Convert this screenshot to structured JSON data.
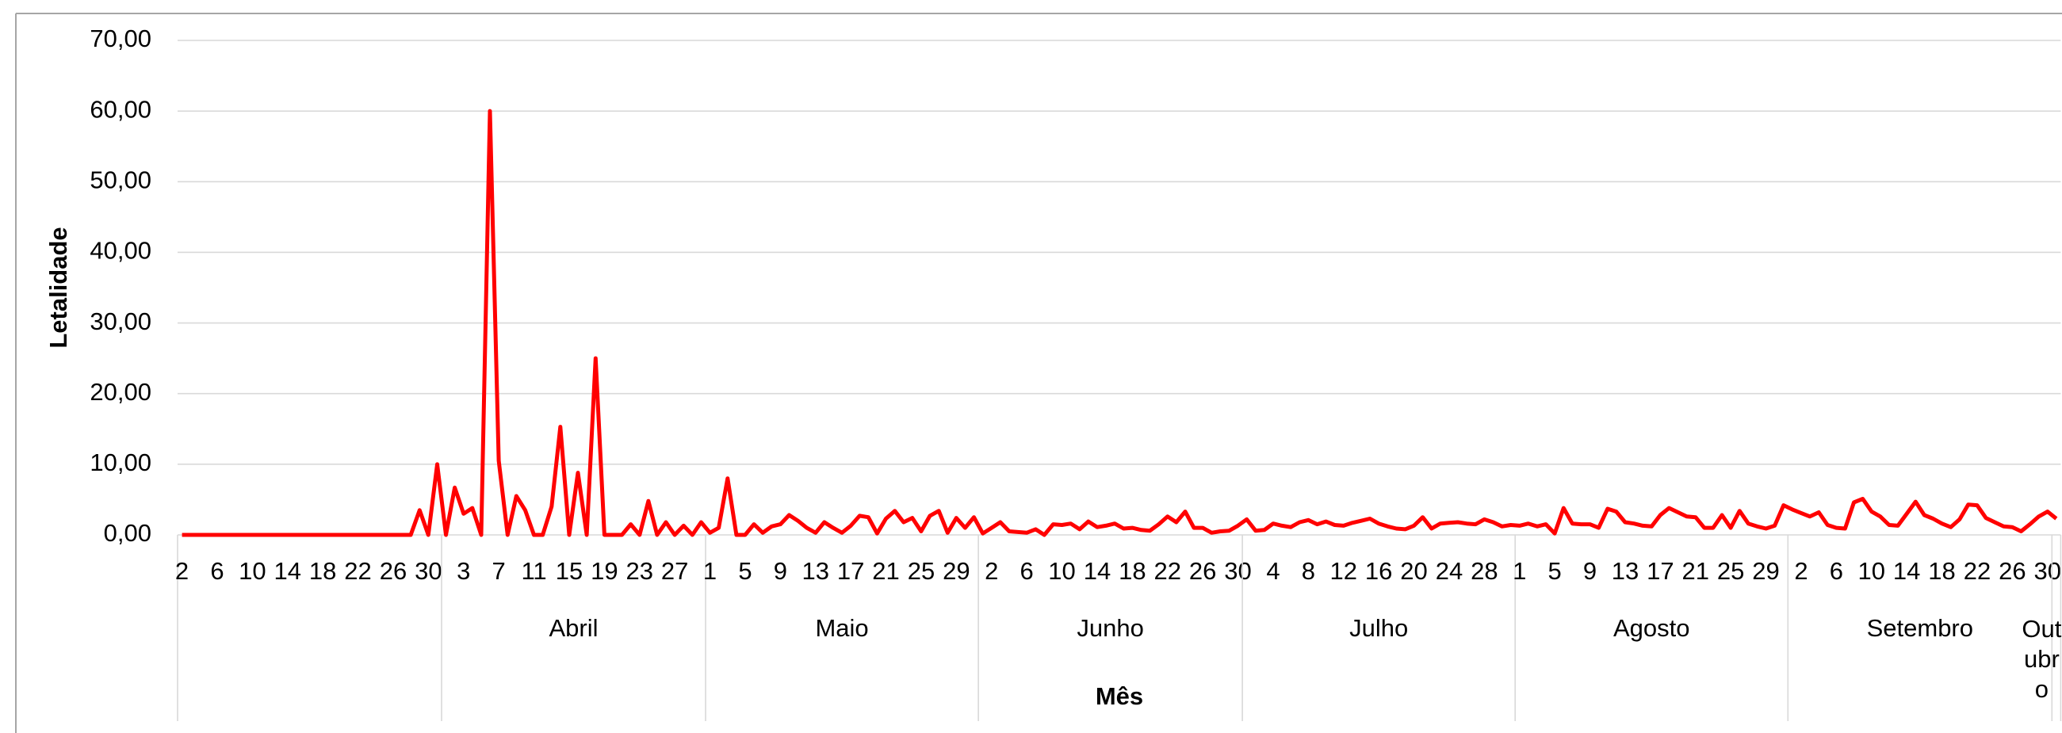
{
  "chart_data": {
    "type": "line",
    "y_label": "Letalidade",
    "x_label": "Mês",
    "color": "#ff0000",
    "grid": true,
    "ylim": [
      0,
      70
    ],
    "yticks": [
      {
        "value": 0,
        "label": "0,00"
      },
      {
        "value": 10,
        "label": "10,00"
      },
      {
        "value": 20,
        "label": "20,00"
      },
      {
        "value": 30,
        "label": "30,00"
      },
      {
        "value": 40,
        "label": "40,00"
      },
      {
        "value": 50,
        "label": "50,00"
      },
      {
        "value": 60,
        "label": "60,00"
      },
      {
        "value": 70,
        "label": "70,00"
      }
    ],
    "months": [
      {
        "label": null,
        "days": [
          "2",
          null,
          null,
          null,
          "6",
          null,
          null,
          null,
          "10",
          null,
          null,
          null,
          "14",
          null,
          null,
          null,
          "18",
          null,
          null,
          null,
          "22",
          null,
          null,
          null,
          "26",
          null,
          null,
          null,
          "30",
          null
        ],
        "values": [
          0,
          0,
          0,
          0,
          0,
          0,
          0,
          0,
          0,
          0,
          0,
          0,
          0,
          0,
          0,
          0,
          0,
          0,
          0,
          0,
          0,
          0,
          0,
          0,
          0,
          0,
          0,
          3.5,
          0,
          10
        ]
      },
      {
        "label": "Abril",
        "days": [
          null,
          null,
          "3",
          null,
          null,
          null,
          "7",
          null,
          null,
          null,
          "11",
          null,
          null,
          null,
          "15",
          null,
          null,
          null,
          "19",
          null,
          null,
          null,
          "23",
          null,
          null,
          null,
          "27",
          null,
          null,
          null
        ],
        "values": [
          0,
          6.7,
          3,
          3.8,
          0,
          60,
          10.5,
          0,
          5.5,
          3.5,
          0,
          0,
          4,
          15.3,
          0,
          8.8,
          0,
          25,
          0,
          0,
          0,
          1.5,
          0,
          4.8,
          0,
          1.8,
          0,
          1.3,
          0,
          1.8
        ]
      },
      {
        "label": "Maio",
        "days": [
          "1",
          null,
          null,
          null,
          "5",
          null,
          null,
          null,
          "9",
          null,
          null,
          null,
          "13",
          null,
          null,
          null,
          "17",
          null,
          null,
          null,
          "21",
          null,
          null,
          null,
          "25",
          null,
          null,
          null,
          "29",
          null,
          null
        ],
        "values": [
          0.3,
          1,
          8,
          0,
          0,
          1.5,
          0.3,
          1.2,
          1.5,
          2.8,
          2,
          1,
          0.3,
          1.8,
          1,
          0.3,
          1.3,
          2.7,
          2.5,
          0.2,
          2.3,
          3.4,
          1.8,
          2.4,
          0.5,
          2.7,
          3.4,
          0.3,
          2.4,
          1,
          2.5
        ]
      },
      {
        "label": "Junho",
        "days": [
          null,
          "2",
          null,
          null,
          null,
          "6",
          null,
          null,
          null,
          "10",
          null,
          null,
          null,
          "14",
          null,
          null,
          null,
          "18",
          null,
          null,
          null,
          "22",
          null,
          null,
          null,
          "26",
          null,
          null,
          null,
          "30"
        ],
        "values": [
          0.2,
          1,
          1.8,
          0.5,
          0.4,
          0.3,
          0.8,
          0,
          1.5,
          1.4,
          1.6,
          0.8,
          1.9,
          1.1,
          1.3,
          1.6,
          0.9,
          1,
          0.7,
          0.6,
          1.5,
          2.6,
          1.8,
          3.3,
          1,
          1,
          0.3,
          0.5,
          0.6,
          1.3
        ]
      },
      {
        "label": "Julho",
        "days": [
          null,
          null,
          null,
          "4",
          null,
          null,
          null,
          "8",
          null,
          null,
          null,
          "12",
          null,
          null,
          null,
          "16",
          null,
          null,
          null,
          "20",
          null,
          null,
          null,
          "24",
          null,
          null,
          null,
          "28",
          null,
          null,
          null
        ],
        "values": [
          2.2,
          0.6,
          0.7,
          1.6,
          1.3,
          1.1,
          1.8,
          2.1,
          1.5,
          1.9,
          1.4,
          1.3,
          1.7,
          2,
          2.3,
          1.6,
          1.2,
          0.9,
          0.8,
          1.3,
          2.5,
          0.9,
          1.6,
          1.7,
          1.8,
          1.6,
          1.5,
          2.2,
          1.8,
          1.2,
          1.4
        ]
      },
      {
        "label": "Agosto",
        "days": [
          "1",
          null,
          null,
          null,
          "5",
          null,
          null,
          null,
          "9",
          null,
          null,
          null,
          "13",
          null,
          null,
          null,
          "17",
          null,
          null,
          null,
          "21",
          null,
          null,
          null,
          "25",
          null,
          null,
          null,
          "29",
          null,
          null
        ],
        "values": [
          1.3,
          1.6,
          1.2,
          1.5,
          0.2,
          3.8,
          1.6,
          1.5,
          1.5,
          1,
          3.7,
          3.3,
          1.8,
          1.6,
          1.3,
          1.2,
          2.8,
          3.8,
          3.2,
          2.6,
          2.5,
          1,
          1,
          2.8,
          1,
          3.4,
          1.6,
          1.2,
          0.9,
          1.3,
          4.2
        ]
      },
      {
        "label": "Setembro",
        "days": [
          null,
          "2",
          null,
          null,
          null,
          "6",
          null,
          null,
          null,
          "10",
          null,
          null,
          null,
          "14",
          null,
          null,
          null,
          "18",
          null,
          null,
          null,
          "22",
          null,
          null,
          null,
          "26",
          null,
          null,
          null,
          "30"
        ],
        "values": [
          3.6,
          3.1,
          2.6,
          3.2,
          1.4,
          1,
          0.9,
          4.6,
          5.1,
          3.3,
          2.6,
          1.4,
          1.3,
          3,
          4.7,
          2.8,
          2.3,
          1.6,
          1.1,
          2.2,
          4.3,
          4.2,
          2.4,
          1.8,
          1.2,
          1.1,
          0.5,
          1.5,
          2.6,
          3.3
        ]
      },
      {
        "label": "Outubro",
        "days": [
          null
        ],
        "values": [
          2.3
        ]
      }
    ]
  }
}
